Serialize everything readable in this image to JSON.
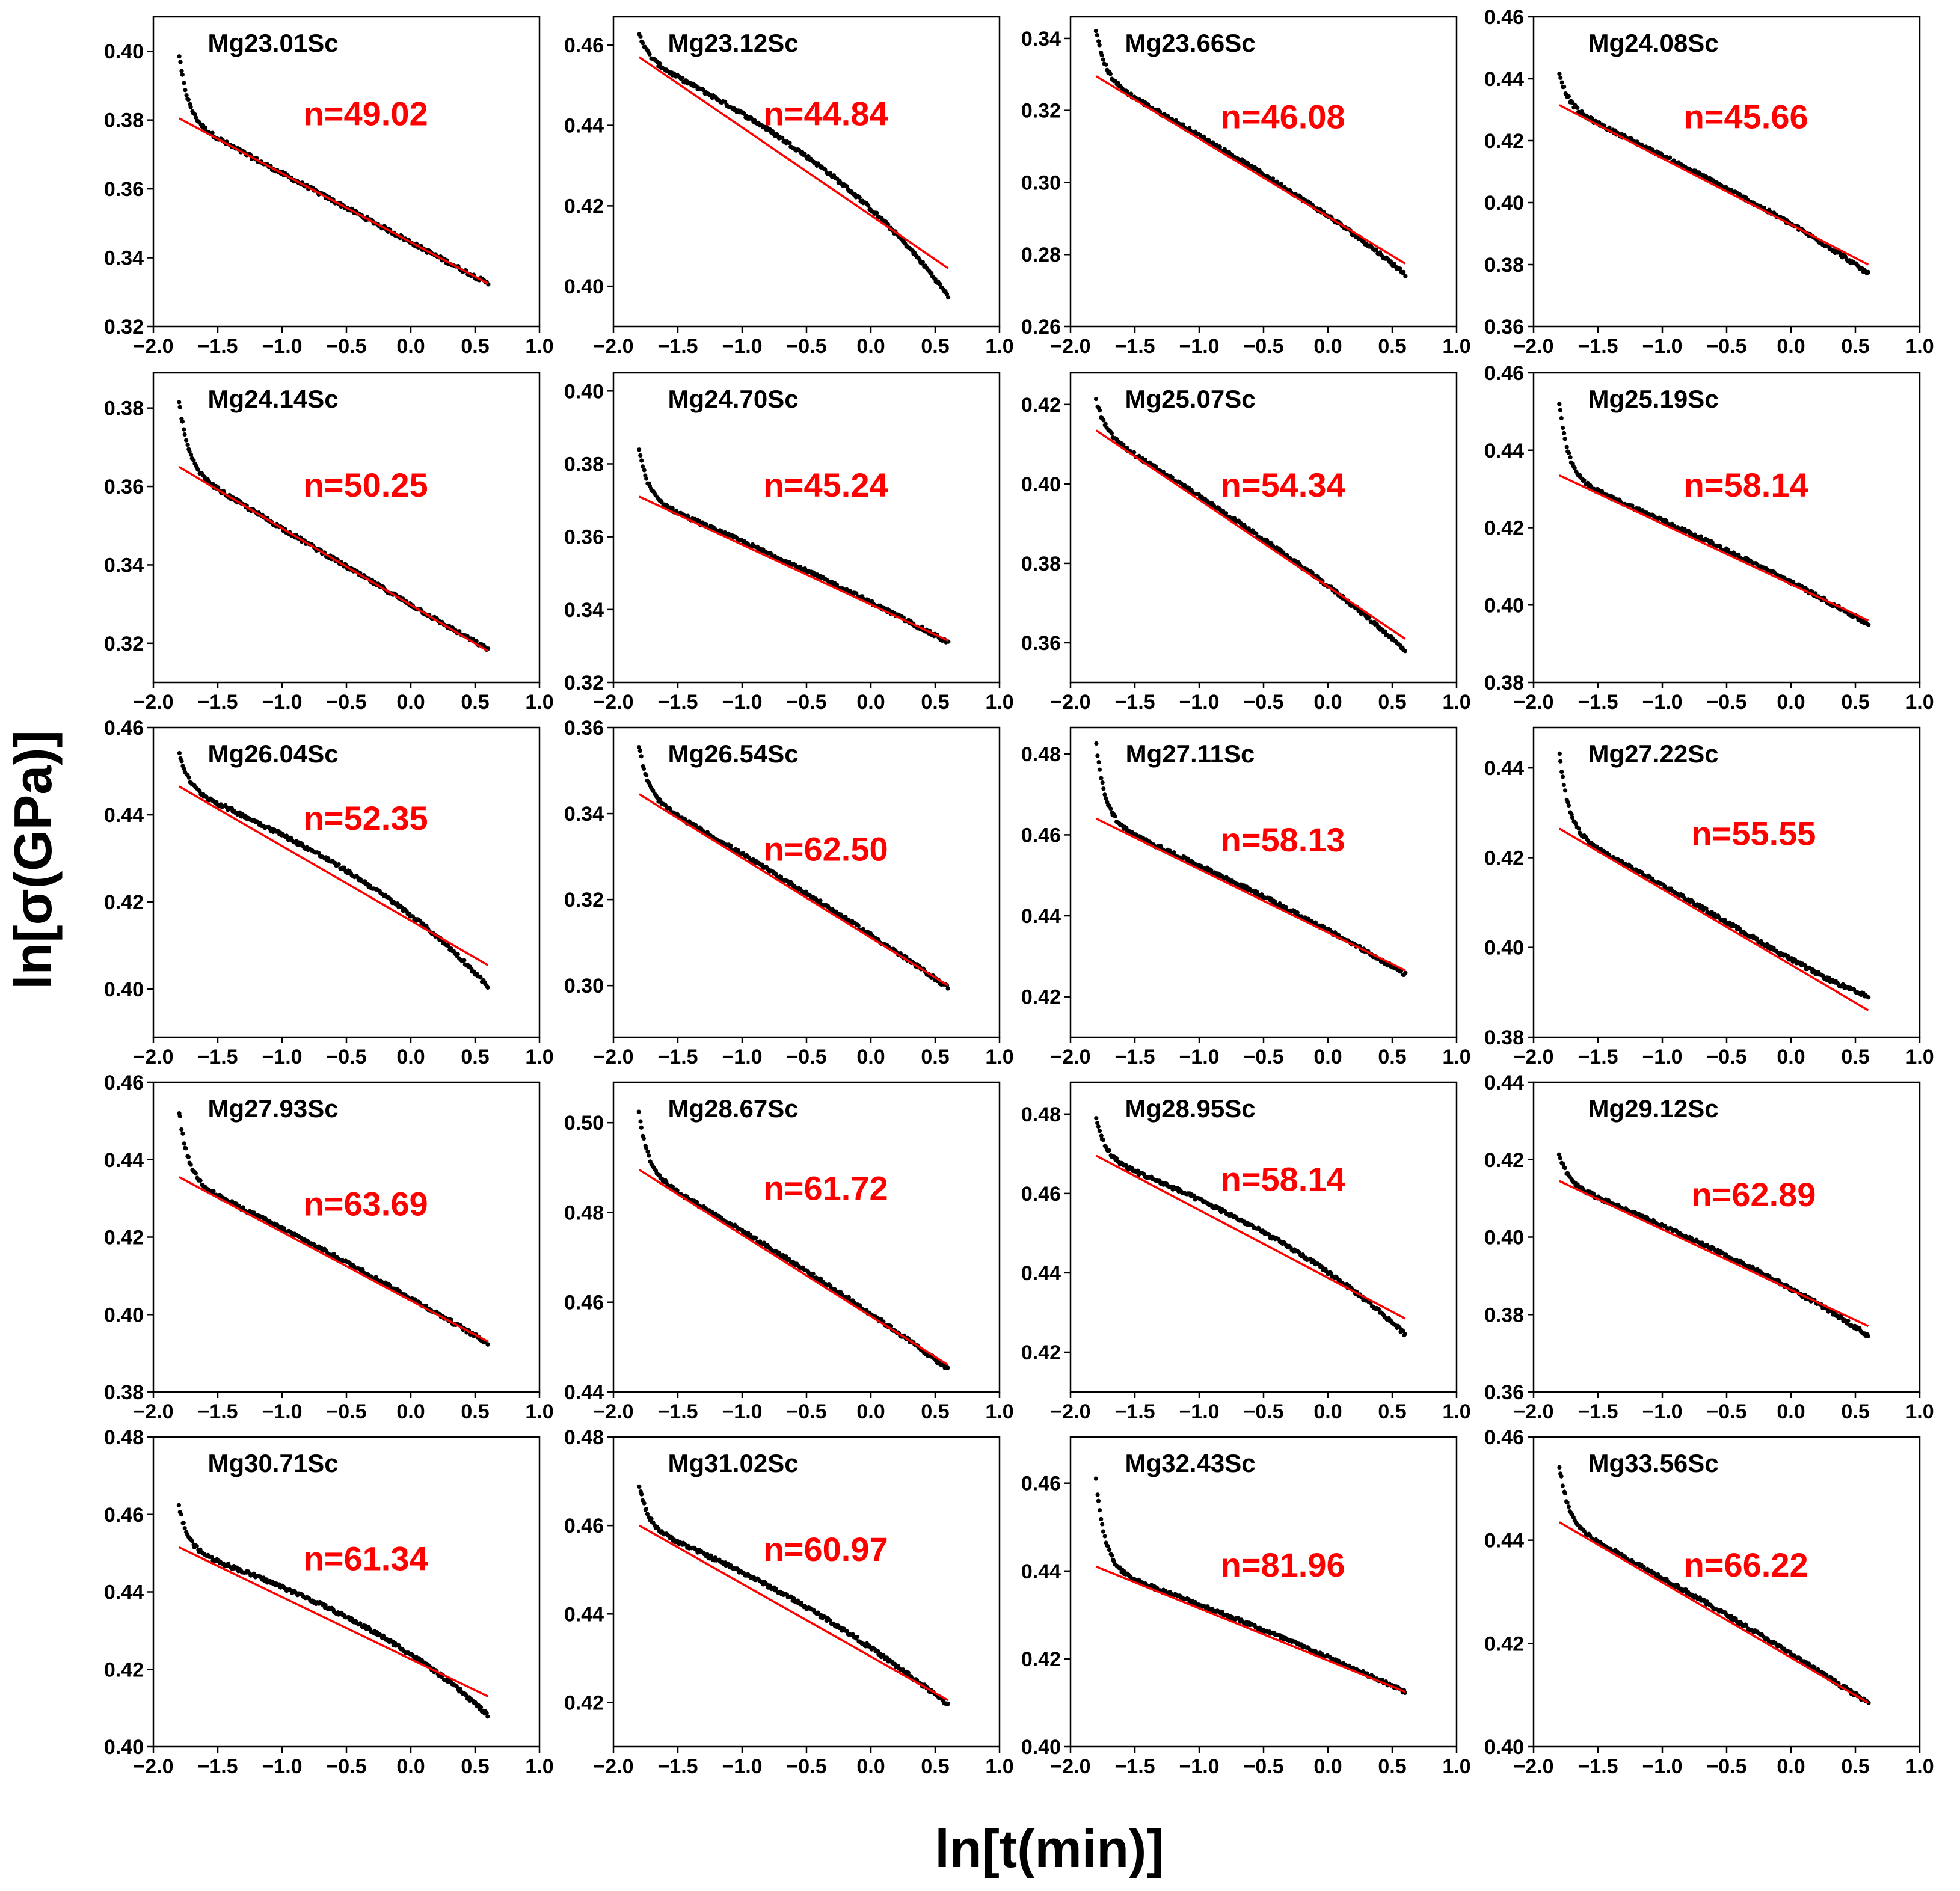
{
  "figure": {
    "ylabel": "ln[σ(GPa)]",
    "xlabel": "ln[t(min)]"
  },
  "colors": {
    "fit_line": "#ff0000",
    "data_points": "#000000",
    "n_label": "#ff0000"
  },
  "chart_data": [
    {
      "type": "scatter",
      "title": "Mg23.01Sc",
      "n_label": "n=49.02",
      "xlim": [
        -2.0,
        1.0
      ],
      "ylim": [
        0.32,
        0.41
      ],
      "xticks": [
        "−2.0",
        "−1.5",
        "−1.0",
        "−0.5",
        "0.0",
        "0.5",
        "1.0"
      ],
      "yticks": [
        "0.32",
        "0.34",
        "0.36",
        "0.38",
        "0.40"
      ],
      "y_start": 0.399,
      "y_fit_start": 0.3805,
      "y_end": 0.3325,
      "y_fit_end": 0.3325,
      "wiggle": 0.0
    },
    {
      "type": "scatter",
      "title": "Mg23.12Sc",
      "n_label": "n=44.84",
      "xlim": [
        -2.0,
        1.0
      ],
      "ylim": [
        0.39,
        0.467
      ],
      "xticks": [
        "−2.0",
        "−1.5",
        "−1.0",
        "−0.5",
        "0.0",
        "0.5",
        "1.0"
      ],
      "yticks": [
        "0.40",
        "0.42",
        "0.44",
        "0.46"
      ],
      "y_start": 0.463,
      "y_fit_start": 0.457,
      "y_end": 0.3975,
      "y_fit_end": 0.4045,
      "wiggle": 0.004
    },
    {
      "type": "scatter",
      "title": "Mg23.66Sc",
      "n_label": "n=46.08",
      "xlim": [
        -2.0,
        1.0
      ],
      "ylim": [
        0.26,
        0.346
      ],
      "xticks": [
        "−2.0",
        "−1.5",
        "−1.0",
        "−0.5",
        "0.0",
        "0.5",
        "1.0"
      ],
      "yticks": [
        "0.26",
        "0.28",
        "0.30",
        "0.32",
        "0.34"
      ],
      "y_start": 0.342,
      "y_fit_start": 0.3295,
      "y_end": 0.2745,
      "y_fit_end": 0.2775,
      "wiggle": 0.001
    },
    {
      "type": "scatter",
      "title": "Mg24.08Sc",
      "n_label": "n=45.66",
      "xlim": [
        -2.0,
        1.0
      ],
      "ylim": [
        0.36,
        0.46
      ],
      "xticks": [
        "−2.0",
        "−1.5",
        "−1.0",
        "−0.5",
        "0.0",
        "0.5",
        "1.0"
      ],
      "yticks": [
        "0.36",
        "0.38",
        "0.40",
        "0.42",
        "0.44",
        "0.46"
      ],
      "y_start": 0.442,
      "y_fit_start": 0.4315,
      "y_end": 0.377,
      "y_fit_end": 0.38,
      "wiggle": 0.001
    },
    {
      "type": "scatter",
      "title": "Mg24.14Sc",
      "n_label": "n=50.25",
      "xlim": [
        -2.0,
        1.0
      ],
      "ylim": [
        0.31,
        0.389
      ],
      "xticks": [
        "−2.0",
        "−1.5",
        "−1.0",
        "−0.5",
        "0.0",
        "0.5",
        "1.0"
      ],
      "yticks": [
        "0.32",
        "0.34",
        "0.36",
        "0.38"
      ],
      "y_start": 0.382,
      "y_fit_start": 0.365,
      "y_end": 0.3185,
      "y_fit_end": 0.318,
      "wiggle": 0.0
    },
    {
      "type": "scatter",
      "title": "Mg24.70Sc",
      "n_label": "n=45.24",
      "xlim": [
        -2.0,
        1.0
      ],
      "ylim": [
        0.32,
        0.405
      ],
      "xticks": [
        "−2.0",
        "−1.5",
        "−1.0",
        "−0.5",
        "0.0",
        "0.5",
        "1.0"
      ],
      "yticks": [
        "0.32",
        "0.34",
        "0.36",
        "0.38",
        "0.40"
      ],
      "y_start": 0.384,
      "y_fit_start": 0.371,
      "y_end": 0.331,
      "y_fit_end": 0.3315,
      "wiggle": 0.001
    },
    {
      "type": "scatter",
      "title": "Mg25.07Sc",
      "n_label": "n=54.34",
      "xlim": [
        -2.0,
        1.0
      ],
      "ylim": [
        0.35,
        0.428
      ],
      "xticks": [
        "−2.0",
        "−1.5",
        "−1.0",
        "−0.5",
        "0.0",
        "0.5",
        "1.0"
      ],
      "yticks": [
        "0.36",
        "0.38",
        "0.40",
        "0.42"
      ],
      "y_start": 0.421,
      "y_fit_start": 0.4135,
      "y_end": 0.358,
      "y_fit_end": 0.361,
      "wiggle": 0.001
    },
    {
      "type": "scatter",
      "title": "Mg25.19Sc",
      "n_label": "n=58.14",
      "xlim": [
        -2.0,
        1.0
      ],
      "ylim": [
        0.38,
        0.46
      ],
      "xticks": [
        "−2.0",
        "−1.5",
        "−1.0",
        "−0.5",
        "0.0",
        "0.5",
        "1.0"
      ],
      "yticks": [
        "0.38",
        "0.40",
        "0.42",
        "0.44",
        "0.46"
      ],
      "y_start": 0.452,
      "y_fit_start": 0.4335,
      "y_end": 0.395,
      "y_fit_end": 0.396,
      "wiggle": 0.001
    },
    {
      "type": "scatter",
      "title": "Mg26.04Sc",
      "n_label": "n=52.35",
      "xlim": [
        -2.0,
        1.0
      ],
      "ylim": [
        0.389,
        0.46
      ],
      "xticks": [
        "−2.0",
        "−1.5",
        "−1.0",
        "−0.5",
        "0.0",
        "0.5",
        "1.0"
      ],
      "yticks": [
        "0.40",
        "0.42",
        "0.44",
        "0.46"
      ],
      "y_start": 0.4545,
      "y_fit_start": 0.4465,
      "y_end": 0.4005,
      "y_fit_end": 0.4055,
      "wiggle": 0.003
    },
    {
      "type": "scatter",
      "title": "Mg26.54Sc",
      "n_label": "n=62.50",
      "xlim": [
        -2.0,
        1.0
      ],
      "ylim": [
        0.288,
        0.36
      ],
      "xticks": [
        "−2.0",
        "−1.5",
        "−1.0",
        "−0.5",
        "0.0",
        "0.5",
        "1.0"
      ],
      "yticks": [
        "0.30",
        "0.32",
        "0.34",
        "0.36"
      ],
      "y_start": 0.3555,
      "y_fit_start": 0.3445,
      "y_end": 0.2995,
      "y_fit_end": 0.3,
      "wiggle": 0.001
    },
    {
      "type": "scatter",
      "title": "Mg27.11Sc",
      "n_label": "n=58.13",
      "xlim": [
        -2.0,
        1.0
      ],
      "ylim": [
        0.41,
        0.4865
      ],
      "xticks": [
        "−2.0",
        "−1.5",
        "−1.0",
        "−0.5",
        "0.0",
        "0.5",
        "1.0"
      ],
      "yticks": [
        "0.42",
        "0.44",
        "0.46",
        "0.48"
      ],
      "y_start": 0.4825,
      "y_fit_start": 0.464,
      "y_end": 0.4255,
      "y_fit_end": 0.4265,
      "wiggle": 0.001
    },
    {
      "type": "scatter",
      "title": "Mg27.22Sc",
      "n_label": "n=55.55",
      "xlim": [
        -2.0,
        1.0
      ],
      "ylim": [
        0.38,
        0.449
      ],
      "xticks": [
        "−2.0",
        "−1.5",
        "−1.0",
        "−0.5",
        "0.0",
        "0.5",
        "1.0"
      ],
      "yticks": [
        "0.38",
        "0.40",
        "0.42",
        "0.44"
      ],
      "y_start": 0.4435,
      "y_fit_start": 0.4265,
      "y_end": 0.389,
      "y_fit_end": 0.386,
      "wiggle": 0.001
    },
    {
      "type": "scatter",
      "title": "Mg27.93Sc",
      "n_label": "n=63.69",
      "xlim": [
        -2.0,
        1.0
      ],
      "ylim": [
        0.38,
        0.46
      ],
      "xticks": [
        "−2.0",
        "−1.5",
        "−1.0",
        "−0.5",
        "0.0",
        "0.5",
        "1.0"
      ],
      "yticks": [
        "0.38",
        "0.40",
        "0.42",
        "0.44",
        "0.46"
      ],
      "y_start": 0.4525,
      "y_fit_start": 0.4355,
      "y_end": 0.3925,
      "y_fit_end": 0.393,
      "wiggle": 0.001
    },
    {
      "type": "scatter",
      "title": "Mg28.67Sc",
      "n_label": "n=61.72",
      "xlim": [
        -2.0,
        1.0
      ],
      "ylim": [
        0.44,
        0.509
      ],
      "xticks": [
        "−2.0",
        "−1.5",
        "−1.0",
        "−0.5",
        "0.0",
        "0.5",
        "1.0"
      ],
      "yticks": [
        "0.44",
        "0.46",
        "0.48",
        "0.50"
      ],
      "y_start": 0.502,
      "y_fit_start": 0.4895,
      "y_end": 0.445,
      "y_fit_end": 0.446,
      "wiggle": 0.001
    },
    {
      "type": "scatter",
      "title": "Mg28.95Sc",
      "n_label": "n=58.14",
      "xlim": [
        -2.0,
        1.0
      ],
      "ylim": [
        0.41,
        0.488
      ],
      "xticks": [
        "−2.0",
        "−1.5",
        "−1.0",
        "−0.5",
        "0.0",
        "0.5",
        "1.0"
      ],
      "yticks": [
        "0.42",
        "0.44",
        "0.46",
        "0.48"
      ],
      "y_start": 0.479,
      "y_fit_start": 0.4695,
      "y_end": 0.4245,
      "y_fit_end": 0.4285,
      "wiggle": 0.003
    },
    {
      "type": "scatter",
      "title": "Mg29.12Sc",
      "n_label": "n=62.89",
      "xlim": [
        -2.0,
        1.0
      ],
      "ylim": [
        0.36,
        0.44
      ],
      "xticks": [
        "−2.0",
        "−1.5",
        "−1.0",
        "−0.5",
        "0.0",
        "0.5",
        "1.0"
      ],
      "yticks": [
        "0.36",
        "0.38",
        "0.40",
        "0.42",
        "0.44"
      ],
      "y_start": 0.4215,
      "y_fit_start": 0.4145,
      "y_end": 0.3745,
      "y_fit_end": 0.377,
      "wiggle": 0.001
    },
    {
      "type": "scatter",
      "title": "Mg30.71Sc",
      "n_label": "n=61.34",
      "xlim": [
        -2.0,
        1.0
      ],
      "ylim": [
        0.4,
        0.48
      ],
      "xticks": [
        "−2.0",
        "−1.5",
        "−1.0",
        "−0.5",
        "0.0",
        "0.5",
        "1.0"
      ],
      "yticks": [
        "0.40",
        "0.42",
        "0.44",
        "0.46",
        "0.48"
      ],
      "y_start": 0.462,
      "y_fit_start": 0.4515,
      "y_end": 0.408,
      "y_fit_end": 0.413,
      "wiggle": 0.003
    },
    {
      "type": "scatter",
      "title": "Mg31.02Sc",
      "n_label": "n=60.97",
      "xlim": [
        -2.0,
        1.0
      ],
      "ylim": [
        0.41,
        0.48
      ],
      "xticks": [
        "−2.0",
        "−1.5",
        "−1.0",
        "−0.5",
        "0.0",
        "0.5",
        "1.0"
      ],
      "yticks": [
        "0.42",
        "0.44",
        "0.46",
        "0.48"
      ],
      "y_start": 0.469,
      "y_fit_start": 0.46,
      "y_end": 0.4195,
      "y_fit_end": 0.4205,
      "wiggle": 0.003
    },
    {
      "type": "scatter",
      "title": "Mg32.43Sc",
      "n_label": "n=81.96",
      "xlim": [
        -2.0,
        1.0
      ],
      "ylim": [
        0.4,
        0.4705
      ],
      "xticks": [
        "−2.0",
        "−1.5",
        "−1.0",
        "−0.5",
        "0.0",
        "0.5",
        "1.0"
      ],
      "yticks": [
        "0.40",
        "0.42",
        "0.44",
        "0.46"
      ],
      "y_start": 0.4605,
      "y_fit_start": 0.441,
      "y_end": 0.4125,
      "y_fit_end": 0.4125,
      "wiggle": 0.001
    },
    {
      "type": "scatter",
      "title": "Mg33.56Sc",
      "n_label": "n=66.22",
      "xlim": [
        -2.0,
        1.0
      ],
      "ylim": [
        0.4,
        0.46
      ],
      "xticks": [
        "−2.0",
        "−1.5",
        "−1.0",
        "−0.5",
        "0.0",
        "0.5",
        "1.0"
      ],
      "yticks": [
        "0.40",
        "0.42",
        "0.44",
        "0.46"
      ],
      "y_start": 0.4545,
      "y_fit_start": 0.4435,
      "y_end": 0.4085,
      "y_fit_end": 0.4085,
      "wiggle": 0.001
    }
  ]
}
